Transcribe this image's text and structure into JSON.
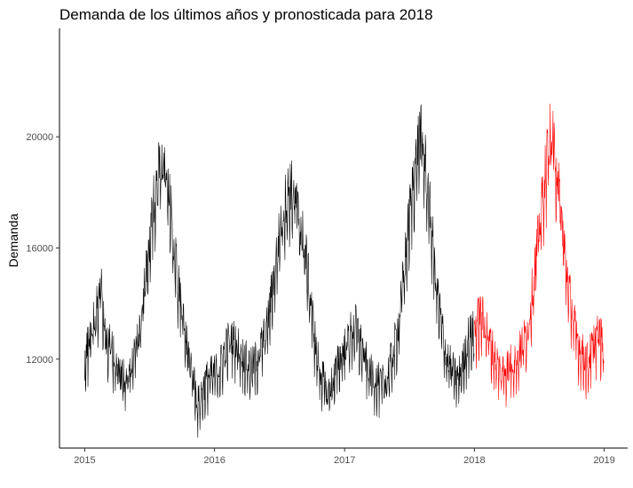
{
  "chart_data": {
    "type": "line",
    "title": "Demanda de los últimos años y pronosticada para 2018",
    "xlabel": "",
    "ylabel": "Demanda",
    "x_ticks": [
      "2015",
      "2016",
      "2017",
      "2018",
      "2019"
    ],
    "y_ticks": [
      "12000",
      "16000",
      "20000"
    ],
    "xlim": [
      "2014-10-22",
      "2019-03-08"
    ],
    "ylim": [
      8800,
      23900
    ],
    "grid": false,
    "legend": "none",
    "series": [
      {
        "color": "#000000",
        "points": [
          [
            "2015-01-01",
            11700
          ],
          [
            "2015-01-15",
            12800
          ],
          [
            "2015-02-01",
            13500
          ],
          [
            "2015-02-15",
            14600
          ],
          [
            "2015-03-01",
            12700
          ],
          [
            "2015-03-15",
            12400
          ],
          [
            "2015-04-01",
            11800
          ],
          [
            "2015-04-15",
            11300
          ],
          [
            "2015-05-01",
            11200
          ],
          [
            "2015-05-15",
            11900
          ],
          [
            "2015-06-01",
            12700
          ],
          [
            "2015-06-15",
            14000
          ],
          [
            "2015-07-01",
            15800
          ],
          [
            "2015-07-15",
            17600
          ],
          [
            "2015-08-01",
            19000
          ],
          [
            "2015-08-15",
            18600
          ],
          [
            "2015-09-01",
            17100
          ],
          [
            "2015-09-15",
            15200
          ],
          [
            "2015-10-01",
            13600
          ],
          [
            "2015-10-15",
            12400
          ],
          [
            "2015-11-01",
            11400
          ],
          [
            "2015-11-15",
            10300
          ],
          [
            "2015-12-01",
            10900
          ],
          [
            "2015-12-15",
            11300
          ],
          [
            "2016-01-01",
            11400
          ],
          [
            "2016-01-15",
            11600
          ],
          [
            "2016-02-01",
            12300
          ],
          [
            "2016-02-15",
            12700
          ],
          [
            "2016-03-01",
            12500
          ],
          [
            "2016-03-15",
            12200
          ],
          [
            "2016-04-01",
            11800
          ],
          [
            "2016-04-15",
            11600
          ],
          [
            "2016-05-01",
            12000
          ],
          [
            "2016-05-15",
            12500
          ],
          [
            "2016-06-01",
            13400
          ],
          [
            "2016-06-15",
            14800
          ],
          [
            "2016-07-01",
            16300
          ],
          [
            "2016-07-15",
            17400
          ],
          [
            "2016-08-01",
            18100
          ],
          [
            "2016-08-15",
            17600
          ],
          [
            "2016-09-01",
            16600
          ],
          [
            "2016-09-15",
            15500
          ],
          [
            "2016-10-01",
            13600
          ],
          [
            "2016-10-15",
            12000
          ],
          [
            "2016-11-01",
            11200
          ],
          [
            "2016-11-15",
            10700
          ],
          [
            "2016-12-01",
            11200
          ],
          [
            "2016-12-15",
            11900
          ],
          [
            "2017-01-01",
            12300
          ],
          [
            "2017-01-15",
            12800
          ],
          [
            "2017-02-01",
            13100
          ],
          [
            "2017-02-15",
            12500
          ],
          [
            "2017-03-01",
            11900
          ],
          [
            "2017-03-15",
            11400
          ],
          [
            "2017-04-01",
            11200
          ],
          [
            "2017-04-15",
            11000
          ],
          [
            "2017-05-01",
            11300
          ],
          [
            "2017-05-15",
            12000
          ],
          [
            "2017-06-01",
            13100
          ],
          [
            "2017-06-15",
            14800
          ],
          [
            "2017-07-01",
            16900
          ],
          [
            "2017-07-15",
            18600
          ],
          [
            "2017-08-01",
            20000
          ],
          [
            "2017-08-15",
            19000
          ],
          [
            "2017-09-01",
            16800
          ],
          [
            "2017-09-15",
            14700
          ],
          [
            "2017-10-01",
            13100
          ],
          [
            "2017-10-15",
            12000
          ],
          [
            "2017-11-01",
            11500
          ],
          [
            "2017-11-15",
            11200
          ],
          [
            "2017-12-01",
            11800
          ],
          [
            "2017-12-15",
            12700
          ],
          [
            "2017-12-31",
            12900
          ]
        ]
      },
      {
        "color": "#ff0000",
        "points": [
          [
            "2018-01-01",
            12900
          ],
          [
            "2018-01-15",
            13500
          ],
          [
            "2018-02-01",
            13200
          ],
          [
            "2018-02-15",
            12500
          ],
          [
            "2018-03-01",
            11900
          ],
          [
            "2018-03-15",
            11500
          ],
          [
            "2018-04-01",
            11600
          ],
          [
            "2018-04-15",
            11800
          ],
          [
            "2018-05-01",
            12000
          ],
          [
            "2018-05-15",
            12400
          ],
          [
            "2018-06-01",
            13100
          ],
          [
            "2018-06-15",
            14600
          ],
          [
            "2018-07-01",
            16400
          ],
          [
            "2018-07-15",
            18100
          ],
          [
            "2018-08-01",
            19900
          ],
          [
            "2018-08-15",
            19400
          ],
          [
            "2018-09-01",
            17300
          ],
          [
            "2018-09-15",
            15300
          ],
          [
            "2018-10-01",
            13800
          ],
          [
            "2018-10-15",
            12700
          ],
          [
            "2018-11-01",
            12100
          ],
          [
            "2018-11-15",
            11800
          ],
          [
            "2018-12-01",
            12400
          ],
          [
            "2018-12-15",
            12900
          ],
          [
            "2018-12-31",
            12300
          ]
        ]
      }
    ]
  }
}
